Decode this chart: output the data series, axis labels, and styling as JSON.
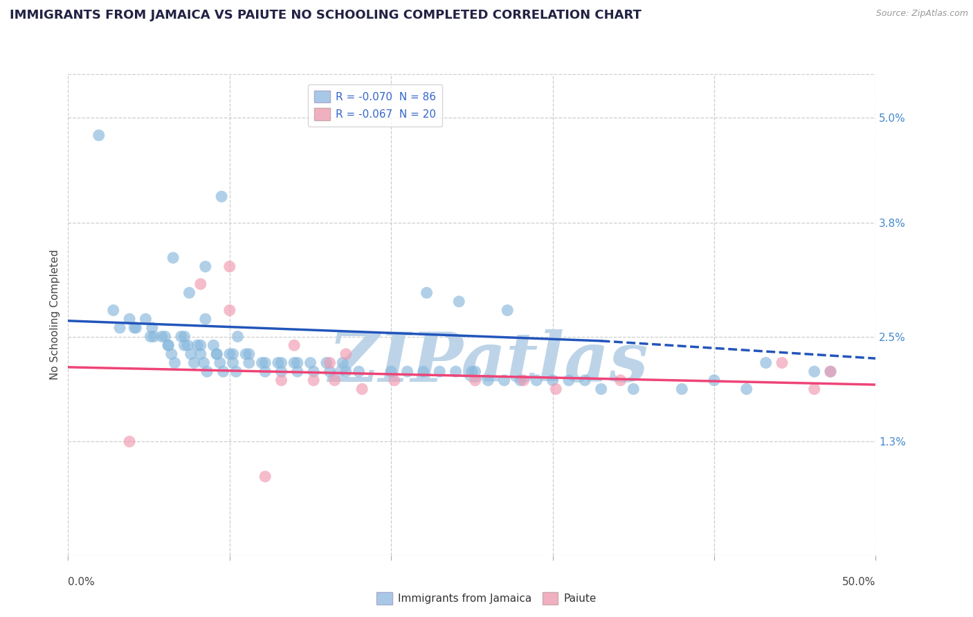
{
  "title": "IMMIGRANTS FROM JAMAICA VS PAIUTE NO SCHOOLING COMPLETED CORRELATION CHART",
  "source_text": "Source: ZipAtlas.com",
  "ylabel": "No Schooling Completed",
  "xlim": [
    0.0,
    0.5
  ],
  "ylim": [
    0.0,
    0.055
  ],
  "ytick_labels": [
    "1.3%",
    "2.5%",
    "3.8%",
    "5.0%"
  ],
  "ytick_positions": [
    0.013,
    0.025,
    0.038,
    0.05
  ],
  "watermark": "ZIPatlas",
  "blue_scatter_x": [
    0.019,
    0.095,
    0.065,
    0.075,
    0.085,
    0.085,
    0.105,
    0.028,
    0.038,
    0.042,
    0.048,
    0.052,
    0.058,
    0.06,
    0.062,
    0.064,
    0.066,
    0.07,
    0.072,
    0.074,
    0.076,
    0.08,
    0.082,
    0.078,
    0.084,
    0.086,
    0.09,
    0.092,
    0.094,
    0.096,
    0.1,
    0.102,
    0.104,
    0.11,
    0.112,
    0.12,
    0.122,
    0.13,
    0.132,
    0.14,
    0.142,
    0.15,
    0.152,
    0.16,
    0.162,
    0.17,
    0.172,
    0.18,
    0.2,
    0.21,
    0.22,
    0.23,
    0.24,
    0.25,
    0.252,
    0.26,
    0.27,
    0.28,
    0.29,
    0.3,
    0.31,
    0.32,
    0.33,
    0.35,
    0.38,
    0.4,
    0.42,
    0.032,
    0.041,
    0.051,
    0.053,
    0.062,
    0.072,
    0.082,
    0.092,
    0.102,
    0.112,
    0.122,
    0.132,
    0.142,
    0.222,
    0.242,
    0.272,
    0.432,
    0.462,
    0.472
  ],
  "blue_scatter_y": [
    0.048,
    0.041,
    0.034,
    0.03,
    0.033,
    0.027,
    0.025,
    0.028,
    0.027,
    0.026,
    0.027,
    0.026,
    0.025,
    0.025,
    0.024,
    0.023,
    0.022,
    0.025,
    0.025,
    0.024,
    0.023,
    0.024,
    0.023,
    0.022,
    0.022,
    0.021,
    0.024,
    0.023,
    0.022,
    0.021,
    0.023,
    0.022,
    0.021,
    0.023,
    0.022,
    0.022,
    0.021,
    0.022,
    0.021,
    0.022,
    0.021,
    0.022,
    0.021,
    0.022,
    0.021,
    0.022,
    0.021,
    0.021,
    0.021,
    0.021,
    0.021,
    0.021,
    0.021,
    0.021,
    0.021,
    0.02,
    0.02,
    0.02,
    0.02,
    0.02,
    0.02,
    0.02,
    0.019,
    0.019,
    0.019,
    0.02,
    0.019,
    0.026,
    0.026,
    0.025,
    0.025,
    0.024,
    0.024,
    0.024,
    0.023,
    0.023,
    0.023,
    0.022,
    0.022,
    0.022,
    0.03,
    0.029,
    0.028,
    0.022,
    0.021,
    0.021
  ],
  "pink_scatter_x": [
    0.038,
    0.1,
    0.082,
    0.14,
    0.162,
    0.165,
    0.172,
    0.182,
    0.202,
    0.282,
    0.302,
    0.342,
    0.462,
    0.1,
    0.122,
    0.132,
    0.152,
    0.252,
    0.442,
    0.472
  ],
  "pink_scatter_y": [
    0.013,
    0.033,
    0.031,
    0.024,
    0.022,
    0.02,
    0.023,
    0.019,
    0.02,
    0.02,
    0.019,
    0.02,
    0.019,
    0.028,
    0.009,
    0.02,
    0.02,
    0.02,
    0.022,
    0.021
  ],
  "blue_line_y_start": 0.0268,
  "blue_line_y_solid_end": 0.0245,
  "blue_line_y_end": 0.0225,
  "blue_line_solid_end_x": 0.33,
  "pink_line_y_start": 0.0215,
  "pink_line_y_end": 0.0195,
  "scatter_color_blue": "#88b8dc",
  "scatter_color_pink": "#f09ab0",
  "line_color_blue": "#2255bb",
  "line_color_pink": "#ee4477",
  "grid_color": "#cccccc",
  "background_color": "#ffffff",
  "watermark_color": "#bdd4e8",
  "watermark_fontsize": 72,
  "title_fontsize": 13,
  "axis_label_fontsize": 11,
  "tick_fontsize": 11,
  "legend_blue_label": "R = -0.070  N = 86",
  "legend_pink_label": "R = -0.067  N = 20",
  "legend_blue_color": "#a8c8e8",
  "legend_pink_color": "#f0b0c0",
  "bottom_legend_blue": "Immigrants from Jamaica",
  "bottom_legend_pink": "Paiute"
}
